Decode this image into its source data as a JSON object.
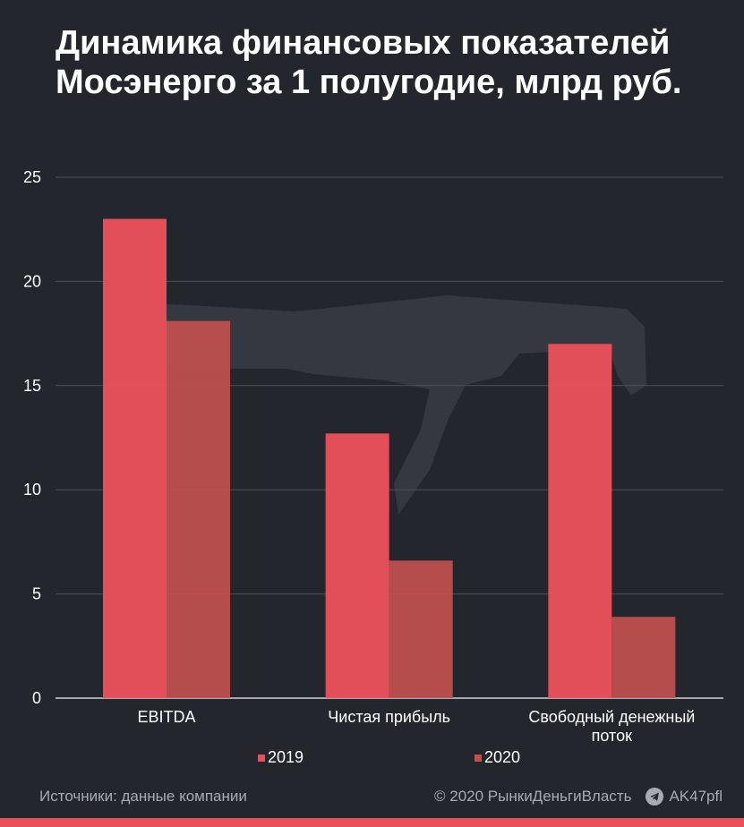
{
  "header": {
    "title": "Динамика финансовых показателей Мосэнерго за 1 полугодие, млрд руб."
  },
  "chart_data": {
    "type": "bar",
    "title": "Динамика финансовых показателей Мосэнерго за 1 полугодие, млрд руб.",
    "categories": [
      "EBITDA",
      "Чистая прибыль",
      "Свободный денежный поток"
    ],
    "series": [
      {
        "name": "2019",
        "values": [
          23.0,
          12.7,
          17.0
        ],
        "color": "#e8515a"
      },
      {
        "name": "2020",
        "values": [
          18.1,
          6.6,
          3.9
        ],
        "color": "#c2504f"
      }
    ],
    "ylim": [
      0,
      25
    ],
    "yticks": [
      "0",
      "5",
      "10",
      "15",
      "20",
      "25"
    ],
    "grid": true,
    "legend_position": "bottom-center"
  },
  "footer": {
    "source": "Источники: данные компании",
    "copyright": "© 2020  РынкиДеньгиВласть",
    "channel": "AK47pfl"
  },
  "icons": {
    "watermark": "rifle-silhouette-icon",
    "telegram": "telegram-icon"
  }
}
